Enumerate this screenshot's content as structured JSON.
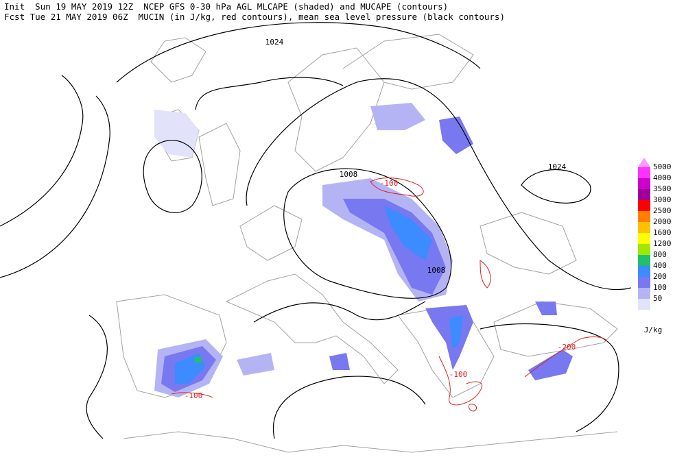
{
  "header": {
    "line1": "Init  Sun 19 MAY 2019 12Z  NCEP GFS 0-30 hPa AGL MLCAPE (shaded) and MUCAPE (contours)",
    "line2": "Fcst Tue 21 MAY 2019 06Z  MUCIN (in J/kg, red contours), mean sea level pressure (black contours)"
  },
  "contour_labels": [
    "1024",
    "1024",
    "1008",
    "1008",
    "-100",
    "-100",
    "-100",
    "-200"
  ],
  "legend": {
    "unit": "J/kg",
    "top_color": "#ff99ff",
    "levels": [
      {
        "value": 5000,
        "color": "#ff33ff"
      },
      {
        "value": 4000,
        "color": "#cc00cc"
      },
      {
        "value": 3500,
        "color": "#a0009a"
      },
      {
        "value": 3000,
        "color": "#ff0000"
      },
      {
        "value": 2500,
        "color": "#ff8000"
      },
      {
        "value": 2000,
        "color": "#ffc000"
      },
      {
        "value": 1600,
        "color": "#ffff00"
      },
      {
        "value": 1200,
        "color": "#a0e800"
      },
      {
        "value": 800,
        "color": "#20c070"
      },
      {
        "value": 400,
        "color": "#3c8cff"
      },
      {
        "value": 200,
        "color": "#7878f0"
      },
      {
        "value": 100,
        "color": "#b4b4f4"
      },
      {
        "value": 50,
        "color": "#e2e2fa"
      }
    ]
  }
}
